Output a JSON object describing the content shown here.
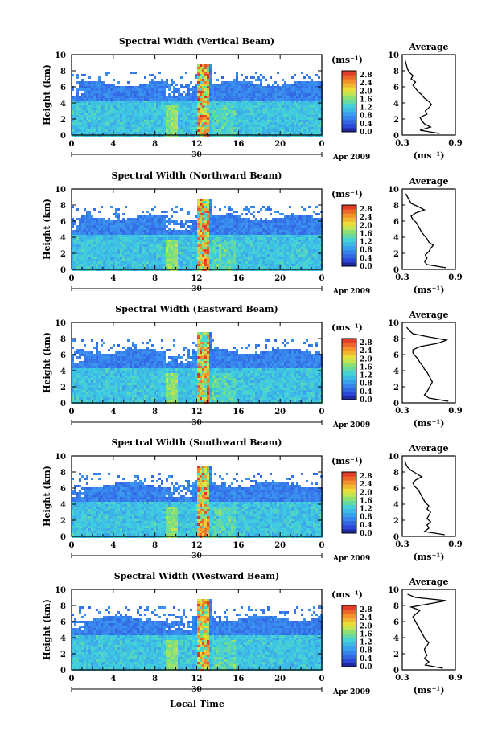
{
  "figure": {
    "xlabel": "Local Time",
    "date_label": "Apr 2009",
    "day_label": "30",
    "unit_label": "(ms⁻¹)",
    "avg_title": "Average",
    "avg_xlabel": "(ms⁻¹)",
    "ylabel": "Height (km)"
  },
  "chart_data": [
    {
      "type": "heatmap",
      "title": "Spectral Width (Vertical Beam)",
      "xlabel": "",
      "ylabel": "Height (km)",
      "x_ticks": [
        "0",
        "4",
        "8",
        "12",
        "16",
        "20",
        "0"
      ],
      "xlim": [
        0,
        24
      ],
      "ylim": [
        0,
        10
      ],
      "y_ticks": [
        "0",
        "2",
        "4",
        "6",
        "8",
        "10"
      ],
      "colorbar_ticks": [
        "0.0",
        "0.4",
        "0.8",
        "1.2",
        "1.6",
        "2.0",
        "2.4",
        "2.8"
      ],
      "colorbar_range": [
        0,
        3.0
      ],
      "profile": {
        "title": "Average",
        "xlabel": "(ms⁻¹)",
        "x_ticks": [
          "0.3",
          "0.9"
        ],
        "xlim": [
          0.3,
          0.9
        ],
        "height": [
          0.2,
          0.6,
          1.0,
          1.4,
          1.8,
          2.2,
          2.6,
          3.0,
          3.4,
          3.8,
          4.2,
          4.6,
          5.0,
          5.4,
          5.8,
          6.2,
          6.6,
          7.0,
          7.4,
          7.8,
          8.2,
          8.6,
          9.0,
          9.4
        ],
        "value": [
          0.72,
          0.5,
          0.62,
          0.55,
          0.52,
          0.5,
          0.58,
          0.56,
          0.6,
          0.63,
          0.6,
          0.55,
          0.52,
          0.48,
          0.45,
          0.42,
          0.45,
          0.4,
          0.42,
          0.38,
          0.36,
          0.35,
          0.34,
          0.33
        ]
      }
    },
    {
      "type": "heatmap",
      "title": "Spectral Width (Northward Beam)",
      "xlabel": "",
      "ylabel": "Height (km)",
      "x_ticks": [
        "0",
        "4",
        "8",
        "12",
        "16",
        "20",
        "0"
      ],
      "xlim": [
        0,
        24
      ],
      "ylim": [
        0,
        10
      ],
      "y_ticks": [
        "0",
        "2",
        "4",
        "6",
        "8",
        "10"
      ],
      "colorbar_ticks": [
        "0.0",
        "0.4",
        "0.8",
        "1.2",
        "1.6",
        "2.0",
        "2.4",
        "2.8"
      ],
      "colorbar_range": [
        0,
        3.0
      ],
      "profile": {
        "title": "Average",
        "xlabel": "(ms⁻¹)",
        "x_ticks": [
          "0.3",
          "0.9"
        ],
        "xlim": [
          0.3,
          0.9
        ],
        "height": [
          0.2,
          0.6,
          1.0,
          1.4,
          1.8,
          2.2,
          2.6,
          3.0,
          3.4,
          3.8,
          4.2,
          4.6,
          5.0,
          5.4,
          5.8,
          6.2,
          6.6,
          7.0,
          7.4,
          7.8,
          8.2,
          8.6,
          9.0,
          9.4
        ],
        "value": [
          0.8,
          0.58,
          0.55,
          0.58,
          0.56,
          0.6,
          0.62,
          0.65,
          0.6,
          0.58,
          0.55,
          0.52,
          0.5,
          0.48,
          0.46,
          0.42,
          0.4,
          0.45,
          0.55,
          0.48,
          0.4,
          0.38,
          0.36,
          0.34
        ]
      }
    },
    {
      "type": "heatmap",
      "title": "Spectral Width (Eastward Beam)",
      "xlabel": "",
      "ylabel": "Height (km)",
      "x_ticks": [
        "0",
        "4",
        "8",
        "12",
        "16",
        "20",
        "0"
      ],
      "xlim": [
        0,
        24
      ],
      "ylim": [
        0,
        10
      ],
      "y_ticks": [
        "0",
        "2",
        "4",
        "6",
        "8",
        "10"
      ],
      "colorbar_ticks": [
        "0.0",
        "0.4",
        "0.8",
        "1.2",
        "1.6",
        "2.0",
        "2.4",
        "2.8"
      ],
      "colorbar_range": [
        0,
        3.0
      ],
      "profile": {
        "title": "Average",
        "xlabel": "(ms⁻¹)",
        "x_ticks": [
          "0.3",
          "0.9"
        ],
        "xlim": [
          0.3,
          0.9
        ],
        "height": [
          0.2,
          0.6,
          1.0,
          1.4,
          1.8,
          2.2,
          2.6,
          3.0,
          3.4,
          3.8,
          4.2,
          4.6,
          5.0,
          5.4,
          5.8,
          6.2,
          6.6,
          7.0,
          7.4,
          7.8,
          8.2,
          8.6,
          9.0,
          9.4
        ],
        "value": [
          0.82,
          0.6,
          0.55,
          0.58,
          0.6,
          0.62,
          0.64,
          0.62,
          0.6,
          0.58,
          0.55,
          0.53,
          0.5,
          0.48,
          0.45,
          0.42,
          0.42,
          0.5,
          0.7,
          0.8,
          0.6,
          0.42,
          0.38,
          0.35
        ]
      }
    },
    {
      "type": "heatmap",
      "title": "Spectral Width (Southward Beam)",
      "xlabel": "",
      "ylabel": "Height (km)",
      "x_ticks": [
        "0",
        "4",
        "8",
        "12",
        "16",
        "20",
        "0"
      ],
      "xlim": [
        0,
        24
      ],
      "ylim": [
        0,
        10
      ],
      "y_ticks": [
        "0",
        "2",
        "4",
        "6",
        "8",
        "10"
      ],
      "colorbar_ticks": [
        "0.0",
        "0.4",
        "0.8",
        "1.2",
        "1.6",
        "2.0",
        "2.4",
        "2.8"
      ],
      "colorbar_range": [
        0,
        3.0
      ],
      "profile": {
        "title": "Average",
        "xlabel": "(ms⁻¹)",
        "x_ticks": [
          "0.3",
          "0.9"
        ],
        "xlim": [
          0.3,
          0.9
        ],
        "height": [
          0.2,
          0.6,
          1.0,
          1.4,
          1.8,
          2.2,
          2.6,
          3.0,
          3.4,
          3.8,
          4.2,
          4.6,
          5.0,
          5.4,
          5.8,
          6.2,
          6.6,
          7.0,
          7.4,
          7.8,
          8.2,
          8.6,
          9.0,
          9.4
        ],
        "value": [
          0.78,
          0.55,
          0.6,
          0.58,
          0.62,
          0.58,
          0.6,
          0.62,
          0.58,
          0.6,
          0.56,
          0.54,
          0.52,
          0.5,
          0.48,
          0.44,
          0.42,
          0.45,
          0.52,
          0.46,
          0.4,
          0.36,
          0.34,
          0.33
        ]
      }
    },
    {
      "type": "heatmap",
      "title": "Spectral Width (Westward Beam)",
      "xlabel": "Local Time",
      "ylabel": "Height (km)",
      "x_ticks": [
        "0",
        "4",
        "8",
        "12",
        "16",
        "20",
        "0"
      ],
      "xlim": [
        0,
        24
      ],
      "ylim": [
        0,
        10
      ],
      "y_ticks": [
        "0",
        "2",
        "4",
        "6",
        "8",
        "10"
      ],
      "colorbar_ticks": [
        "0.0",
        "0.4",
        "0.8",
        "1.2",
        "1.6",
        "2.0",
        "2.4",
        "2.8"
      ],
      "colorbar_range": [
        0,
        3.0
      ],
      "profile": {
        "title": "Average",
        "xlabel": "(ms⁻¹)",
        "x_ticks": [
          "0.3",
          "0.9"
        ],
        "xlim": [
          0.3,
          0.9
        ],
        "height": [
          0.2,
          0.6,
          1.0,
          1.4,
          1.8,
          2.2,
          2.6,
          3.0,
          3.4,
          3.8,
          4.2,
          4.6,
          5.0,
          5.4,
          5.8,
          6.2,
          6.6,
          7.0,
          7.4,
          7.8,
          8.2,
          8.6,
          9.0,
          9.4
        ],
        "value": [
          0.76,
          0.56,
          0.6,
          0.55,
          0.58,
          0.56,
          0.55,
          0.58,
          0.6,
          0.56,
          0.54,
          0.52,
          0.5,
          0.48,
          0.46,
          0.44,
          0.42,
          0.46,
          0.5,
          0.4,
          0.6,
          0.8,
          0.45,
          0.36
        ]
      }
    }
  ]
}
